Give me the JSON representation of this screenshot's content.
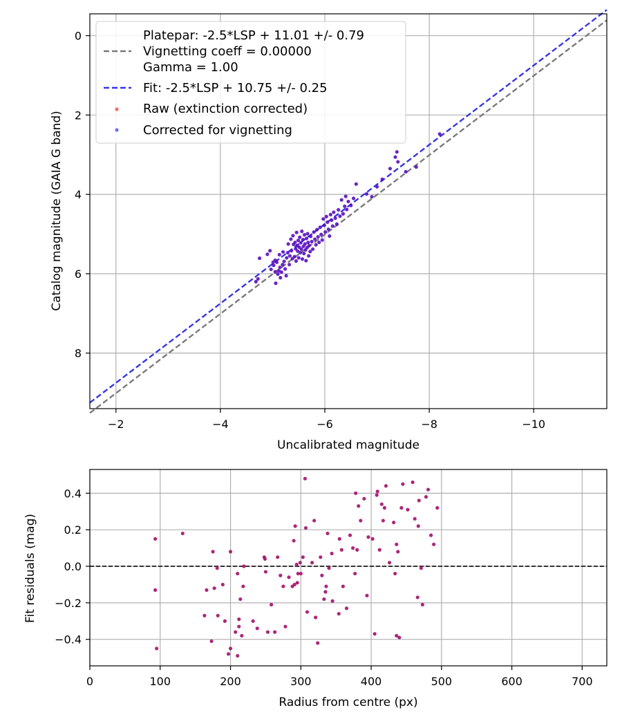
{
  "chart_data": [
    {
      "type": "scatter",
      "xlabel": "Uncalibrated magnitude",
      "ylabel": "Catalog magnitude (GAIA G band)",
      "xlim": [
        -1.5,
        -11.4
      ],
      "ylim": [
        9.4,
        -0.55
      ],
      "xticks": [
        -2,
        -4,
        -6,
        -8,
        -10
      ],
      "xtick_labels": [
        "−2",
        "−4",
        "−6",
        "−8",
        "−10"
      ],
      "yticks": [
        0,
        2,
        4,
        6,
        8
      ],
      "ytick_labels": [
        "0",
        "2",
        "4",
        "6",
        "8"
      ],
      "grid": true,
      "legend_position": "top-left",
      "legend": [
        {
          "style": "blank",
          "text": "Platepar: -2.5*LSP + 11.01 +/- 0.79"
        },
        {
          "style": "gray-dash",
          "text": "Vignetting coeff = 0.00000"
        },
        {
          "style": "blank",
          "text": "Gamma = 1.00"
        },
        {
          "style": "blue-dash",
          "text": "Fit: -2.5*LSP + 10.75 +/- 0.25"
        },
        {
          "style": "red-dot",
          "text": "Raw (extinction corrected)"
        },
        {
          "style": "blue-dot",
          "text": "Corrected for vignetting"
        }
      ],
      "lines": [
        {
          "name": "Platepar",
          "slope": 1,
          "intercept": 11.01,
          "color": "#7a7a7a"
        },
        {
          "name": "Fit",
          "slope": 1,
          "intercept": 10.75,
          "color": "#3535e8"
        }
      ],
      "series": [
        {
          "name": "Corrected for vignetting",
          "color": "#5a10bc",
          "points": [
            [
              -4.75,
              5.61
            ],
            [
              -4.68,
              6.2
            ],
            [
              -4.72,
              6.13
            ],
            [
              -4.9,
              5.51
            ],
            [
              -4.97,
              5.89
            ],
            [
              -5.01,
              5.71
            ],
            [
              -5.02,
              5.79
            ],
            [
              -5.05,
              5.66
            ],
            [
              -5.06,
              6.24
            ],
            [
              -5.08,
              5.71
            ],
            [
              -5.1,
              6.01
            ],
            [
              -5.12,
              5.93
            ],
            [
              -5.13,
              5.52
            ],
            [
              -5.14,
              5.84
            ],
            [
              -5.15,
              6.1
            ],
            [
              -5.17,
              5.96
            ],
            [
              -5.19,
              5.77
            ],
            [
              -5.2,
              5.45
            ],
            [
              -5.22,
              5.69
            ],
            [
              -5.24,
              5.88
            ],
            [
              -5.26,
              6.05
            ],
            [
              -5.27,
              5.6
            ],
            [
              -5.29,
              5.47
            ],
            [
              -5.3,
              5.25
            ],
            [
              -5.32,
              5.77
            ],
            [
              -5.33,
              5.55
            ],
            [
              -5.35,
              5.13
            ],
            [
              -5.36,
              5.42
            ],
            [
              -5.38,
              5.62
            ],
            [
              -5.39,
              5.04
            ],
            [
              -5.4,
              5.26
            ],
            [
              -5.42,
              5.57
            ],
            [
              -5.43,
              5.21
            ],
            [
              -5.44,
              5.37
            ],
            [
              -5.45,
              5.68
            ],
            [
              -5.46,
              4.96
            ],
            [
              -5.47,
              5.29
            ],
            [
              -5.48,
              5.43
            ],
            [
              -5.49,
              5.16
            ],
            [
              -5.5,
              5.6
            ],
            [
              -5.51,
              5.33
            ],
            [
              -5.52,
              5.08
            ],
            [
              -5.53,
              5.47
            ],
            [
              -5.54,
              5.22
            ],
            [
              -5.55,
              5.38
            ],
            [
              -5.56,
              4.93
            ],
            [
              -5.57,
              5.63
            ],
            [
              -5.58,
              5.14
            ],
            [
              -5.59,
              5.31
            ],
            [
              -5.6,
              5.49
            ],
            [
              -5.61,
              5.02
            ],
            [
              -5.62,
              5.25
            ],
            [
              -5.63,
              5.4
            ],
            [
              -5.64,
              5.67
            ],
            [
              -5.65,
              5.11
            ],
            [
              -5.66,
              5.34
            ],
            [
              -5.67,
              4.99
            ],
            [
              -5.68,
              5.21
            ],
            [
              -5.69,
              5.55
            ],
            [
              -5.7,
              5.29
            ],
            [
              -5.72,
              5.44
            ],
            [
              -5.73,
              5.06
            ],
            [
              -5.75,
              5.19
            ],
            [
              -5.77,
              5.38
            ],
            [
              -5.79,
              4.95
            ],
            [
              -5.81,
              5.13
            ],
            [
              -5.83,
              5.27
            ],
            [
              -5.85,
              4.89
            ],
            [
              -5.87,
              5.07
            ],
            [
              -5.89,
              5.21
            ],
            [
              -5.91,
              4.83
            ],
            [
              -5.93,
              5.01
            ],
            [
              -5.95,
              5.15
            ],
            [
              -5.97,
              4.62
            ],
            [
              -5.99,
              4.78
            ],
            [
              -6.01,
              4.95
            ],
            [
              -6.03,
              4.56
            ],
            [
              -6.05,
              4.7
            ],
            [
              -6.07,
              4.88
            ],
            [
              -6.09,
              5.05
            ],
            [
              -6.11,
              4.51
            ],
            [
              -6.13,
              4.65
            ],
            [
              -6.15,
              4.8
            ],
            [
              -6.17,
              4.45
            ],
            [
              -6.2,
              4.6
            ],
            [
              -6.23,
              4.75
            ],
            [
              -6.26,
              4.39
            ],
            [
              -6.29,
              4.55
            ],
            [
              -6.32,
              4.14
            ],
            [
              -6.35,
              4.49
            ],
            [
              -6.38,
              4.3
            ],
            [
              -6.4,
              4.05
            ],
            [
              -6.42,
              4.38
            ],
            [
              -6.45,
              4.18
            ],
            [
              -6.5,
              4.28
            ],
            [
              -6.55,
              4.1
            ],
            [
              -6.6,
              3.74
            ],
            [
              -6.8,
              3.99
            ],
            [
              -6.9,
              4.06
            ],
            [
              -7.0,
              3.81
            ],
            [
              -7.1,
              3.62
            ],
            [
              -7.25,
              3.35
            ],
            [
              -7.35,
              3.06
            ],
            [
              -7.4,
              3.18
            ],
            [
              -7.38,
              2.93
            ],
            [
              -7.55,
              3.43
            ],
            [
              -7.75,
              3.31
            ],
            [
              -8.2,
              2.48
            ],
            [
              -4.95,
              5.42
            ],
            [
              -5.05,
              5.95
            ]
          ]
        }
      ]
    },
    {
      "type": "scatter",
      "xlabel": "Radius from centre (px)",
      "ylabel": "Fit residuals (mag)",
      "xlim": [
        0,
        735
      ],
      "ylim": [
        -0.545,
        0.53
      ],
      "xticks": [
        0,
        100,
        200,
        300,
        400,
        500,
        600,
        700
      ],
      "xtick_labels": [
        "0",
        "100",
        "200",
        "300",
        "400",
        "500",
        "600",
        "700"
      ],
      "yticks": [
        0.4,
        0.2,
        0.0,
        -0.2,
        -0.4
      ],
      "ytick_labels": [
        "0.4",
        "0.2",
        "0.0",
        "−0.2",
        "−0.4"
      ],
      "grid": true,
      "reference_line": 0.0,
      "series": [
        {
          "name": "Residuals",
          "color": "#a4106c",
          "points": [
            [
              93,
              0.15
            ],
            [
              93,
              -0.13
            ],
            [
              95,
              -0.45
            ],
            [
              132,
              0.18
            ],
            [
              163,
              -0.27
            ],
            [
              166,
              -0.13
            ],
            [
              173,
              -0.41
            ],
            [
              175,
              0.08
            ],
            [
              177,
              -0.12
            ],
            [
              181,
              -0.01
            ],
            [
              182,
              -0.27
            ],
            [
              189,
              -0.1
            ],
            [
              192,
              -0.3
            ],
            [
              197,
              -0.48
            ],
            [
              200,
              -0.45
            ],
            [
              200,
              0.08
            ],
            [
              207,
              -0.36
            ],
            [
              210,
              -0.49
            ],
            [
              210,
              -0.04
            ],
            [
              212,
              -0.33
            ],
            [
              212,
              -0.29
            ],
            [
              214,
              -0.18
            ],
            [
              216,
              -0.38
            ],
            [
              218,
              -0.11
            ],
            [
              219,
              -0.0
            ],
            [
              232,
              -0.3
            ],
            [
              238,
              -0.34
            ],
            [
              248,
              0.05
            ],
            [
              249,
              0.04
            ],
            [
              250,
              -0.03
            ],
            [
              253,
              -0.36
            ],
            [
              258,
              -0.21
            ],
            [
              263,
              -0.36
            ],
            [
              267,
              0.05
            ],
            [
              271,
              -0.05
            ],
            [
              275,
              -0.11
            ],
            [
              278,
              -0.33
            ],
            [
              283,
              -0.06
            ],
            [
              288,
              -0.11
            ],
            [
              290,
              0.14
            ],
            [
              291,
              -0.1
            ],
            [
              294,
              0.01
            ],
            [
              295,
              -0.09
            ],
            [
              296,
              -0.04
            ],
            [
              299,
              0.02
            ],
            [
              300,
              -0.04
            ],
            [
              303,
              0.05
            ],
            [
              306,
              0.48
            ],
            [
              307,
              0.21
            ],
            [
              309,
              -0.25
            ],
            [
              316,
              0.02
            ],
            [
              319,
              0.25
            ],
            [
              321,
              -0.28
            ],
            [
              324,
              -0.42
            ],
            [
              328,
              0.05
            ],
            [
              330,
              -0.05
            ],
            [
              333,
              -0.18
            ],
            [
              335,
              -0.14
            ],
            [
              336,
              -0.11
            ],
            [
              338,
              0.18
            ],
            [
              340,
              -0.01
            ],
            [
              344,
              0.07
            ],
            [
              354,
              -0.26
            ],
            [
              355,
              0.15
            ],
            [
              358,
              0.09
            ],
            [
              360,
              -0.11
            ],
            [
              365,
              -0.23
            ],
            [
              370,
              0.17
            ],
            [
              374,
              0.1
            ],
            [
              377,
              -0.04
            ],
            [
              378,
              0.4
            ],
            [
              380,
              0.09
            ],
            [
              382,
              0.33
            ],
            [
              385,
              0.25
            ],
            [
              390,
              0.37
            ],
            [
              394,
              -0.16
            ],
            [
              396,
              0.16
            ],
            [
              402,
              0.15
            ],
            [
              405,
              -0.37
            ],
            [
              408,
              0.39
            ],
            [
              409,
              0.41
            ],
            [
              412,
              0.09
            ],
            [
              415,
              0.34
            ],
            [
              417,
              0.25
            ],
            [
              419,
              0.32
            ],
            [
              421,
              0.44
            ],
            [
              426,
              0.02
            ],
            [
              432,
              0.24
            ],
            [
              434,
              -0.04
            ],
            [
              436,
              -0.38
            ],
            [
              436,
              0.12
            ],
            [
              438,
              0.08
            ],
            [
              440,
              -0.39
            ],
            [
              443,
              0.32
            ],
            [
              445,
              0.45
            ],
            [
              452,
              0.31
            ],
            [
              459,
              0.46
            ],
            [
              462,
              0.26
            ],
            [
              466,
              -0.17
            ],
            [
              467,
              0.22
            ],
            [
              468,
              0.36
            ],
            [
              471,
              -0.01
            ],
            [
              473,
              -0.21
            ],
            [
              478,
              0.38
            ],
            [
              481,
              0.42
            ],
            [
              485,
              0.17
            ],
            [
              489,
              0.12
            ],
            [
              494,
              0.32
            ],
            [
              292,
              0.22
            ],
            [
              345,
              -0.19
            ]
          ]
        }
      ]
    }
  ]
}
